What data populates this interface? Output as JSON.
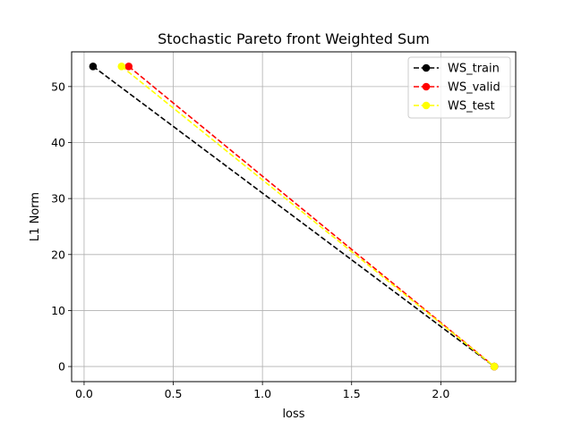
{
  "chart_data": {
    "type": "line",
    "title": "Stochastic Pareto front Weighted Sum",
    "xlabel": "loss",
    "ylabel": "L1 Norm",
    "xlim": [
      -0.07,
      2.42
    ],
    "ylim": [
      -2.7,
      56.2
    ],
    "xticks": [
      0.0,
      0.5,
      1.0,
      1.5,
      2.0
    ],
    "xtick_labels": [
      "0.0",
      "0.5",
      "1.0",
      "1.5",
      "2.0"
    ],
    "yticks": [
      0,
      10,
      20,
      30,
      40,
      50
    ],
    "ytick_labels": [
      "0",
      "10",
      "20",
      "30",
      "40",
      "50"
    ],
    "grid": true,
    "legend_position": "top-right",
    "series": [
      {
        "name": "WS_train",
        "color": "#000000",
        "x": [
          0.05,
          2.3
        ],
        "y": [
          53.6,
          0.0
        ]
      },
      {
        "name": "WS_valid",
        "color": "#ff0000",
        "x": [
          0.25,
          2.3
        ],
        "y": [
          53.6,
          0.0
        ]
      },
      {
        "name": "WS_test",
        "color": "#ffff00",
        "x": [
          0.21,
          2.3
        ],
        "y": [
          53.6,
          0.0
        ]
      }
    ]
  }
}
